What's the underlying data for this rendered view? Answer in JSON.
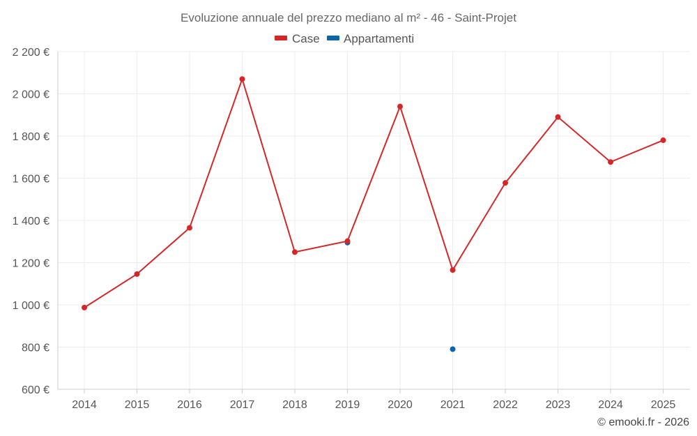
{
  "chart_data": {
    "type": "line",
    "title": "Evoluzione annuale del prezzo mediano al m² - 46 - Saint-Projet",
    "legend_position": "top-center",
    "x": [
      "2014",
      "2015",
      "2016",
      "2017",
      "2018",
      "2019",
      "2020",
      "2021",
      "2022",
      "2023",
      "2024",
      "2025"
    ],
    "y_ticks": [
      "600 €",
      "800 €",
      "1 000 €",
      "1 200 €",
      "1 400 €",
      "1 600 €",
      "1 800 €",
      "2 000 €",
      "2 200 €"
    ],
    "ylim": [
      600,
      2200
    ],
    "grid": true,
    "series": [
      {
        "name": "Case",
        "color": "#d62728",
        "values": [
          987,
          1146,
          1365,
          2070,
          1250,
          1302,
          1940,
          1165,
          1578,
          1890,
          1677,
          1780
        ]
      },
      {
        "name": "Appartamenti",
        "color": "#0a66a8",
        "values": [
          null,
          null,
          null,
          null,
          null,
          1295,
          null,
          790,
          null,
          null,
          null,
          null
        ]
      }
    ]
  },
  "credit": "© emooki.fr - 2026"
}
